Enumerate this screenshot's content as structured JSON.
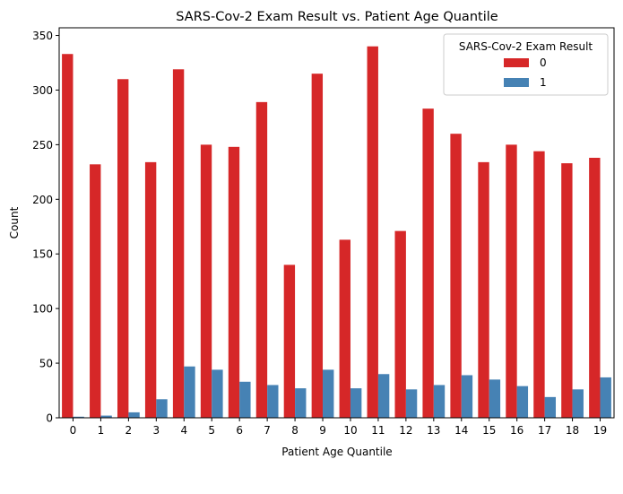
{
  "chart_data": {
    "type": "bar",
    "title": "SARS-Cov-2 Exam Result vs. Patient Age Quantile",
    "xlabel": "Patient Age Quantile",
    "ylabel": "Count",
    "ylim": [
      0,
      357
    ],
    "yticks": [
      0,
      50,
      100,
      150,
      200,
      250,
      300,
      350
    ],
    "grid": false,
    "legend": {
      "title": "SARS-Cov-2 Exam Result",
      "placement": "top-right"
    },
    "categories": [
      "0",
      "1",
      "2",
      "3",
      "4",
      "5",
      "6",
      "7",
      "8",
      "9",
      "10",
      "11",
      "12",
      "13",
      "14",
      "15",
      "16",
      "17",
      "18",
      "19"
    ],
    "series": [
      {
        "name": "0",
        "color": "#d62728",
        "values": [
          333,
          232,
          310,
          234,
          319,
          250,
          248,
          289,
          140,
          315,
          163,
          340,
          171,
          283,
          260,
          234,
          250,
          244,
          233,
          238
        ]
      },
      {
        "name": "1",
        "color": "#4682b4",
        "values": [
          1,
          2,
          5,
          17,
          47,
          44,
          33,
          30,
          27,
          44,
          27,
          40,
          26,
          30,
          39,
          35,
          29,
          19,
          26,
          37
        ]
      }
    ]
  }
}
